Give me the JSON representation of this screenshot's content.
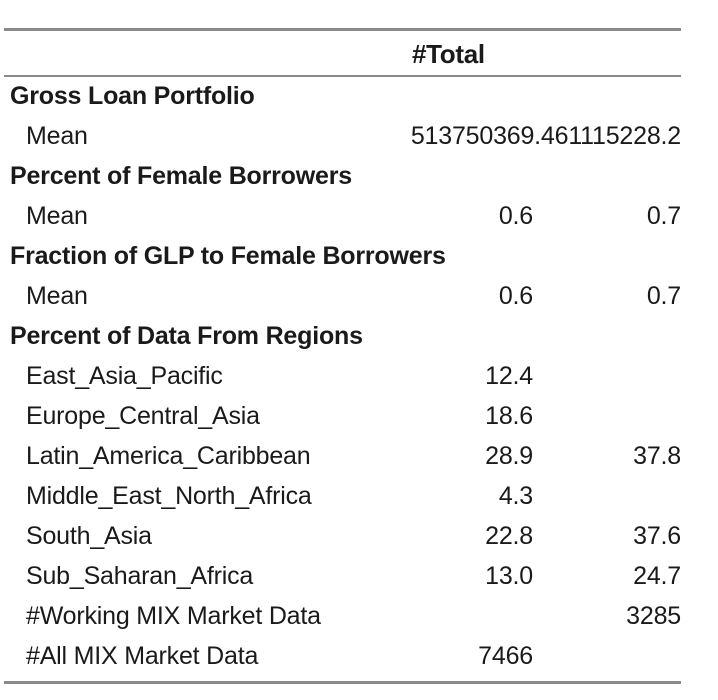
{
  "table": {
    "header": "#Total",
    "sections": {
      "gross_loan_portfolio": {
        "title": "Gross Loan Portfolio",
        "mean_label": "Mean",
        "mean_values": "513750369.461115228.2"
      },
      "percent_female": {
        "title": "Percent of Female Borrowers",
        "mean_label": "Mean",
        "c1": "0.6",
        "c2": "0.7"
      },
      "fraction_glp": {
        "title": "Fraction of GLP to Female Borrowers",
        "mean_label": "Mean",
        "c1": "0.6",
        "c2": "0.7"
      },
      "regions": {
        "title": "Percent of Data From Regions",
        "rows": [
          {
            "label": "East_Asia_Pacific",
            "c1": "12.4",
            "c2": ""
          },
          {
            "label": "Europe_Central_Asia",
            "c1": "18.6",
            "c2": ""
          },
          {
            "label": "Latin_America_Caribbean",
            "c1": "28.9",
            "c2": "37.8"
          },
          {
            "label": "Middle_East_North_Africa",
            "c1": "4.3",
            "c2": ""
          },
          {
            "label": "South_Asia",
            "c1": "22.8",
            "c2": "37.6"
          },
          {
            "label": "Sub_Saharan_Africa",
            "c1": "13.0",
            "c2": "24.7"
          },
          {
            "label": "#Working MIX Market Data",
            "c1": "",
            "c2": "3285"
          },
          {
            "label": "#All MIX Market Data",
            "c1": "7466",
            "c2": ""
          }
        ]
      }
    }
  }
}
